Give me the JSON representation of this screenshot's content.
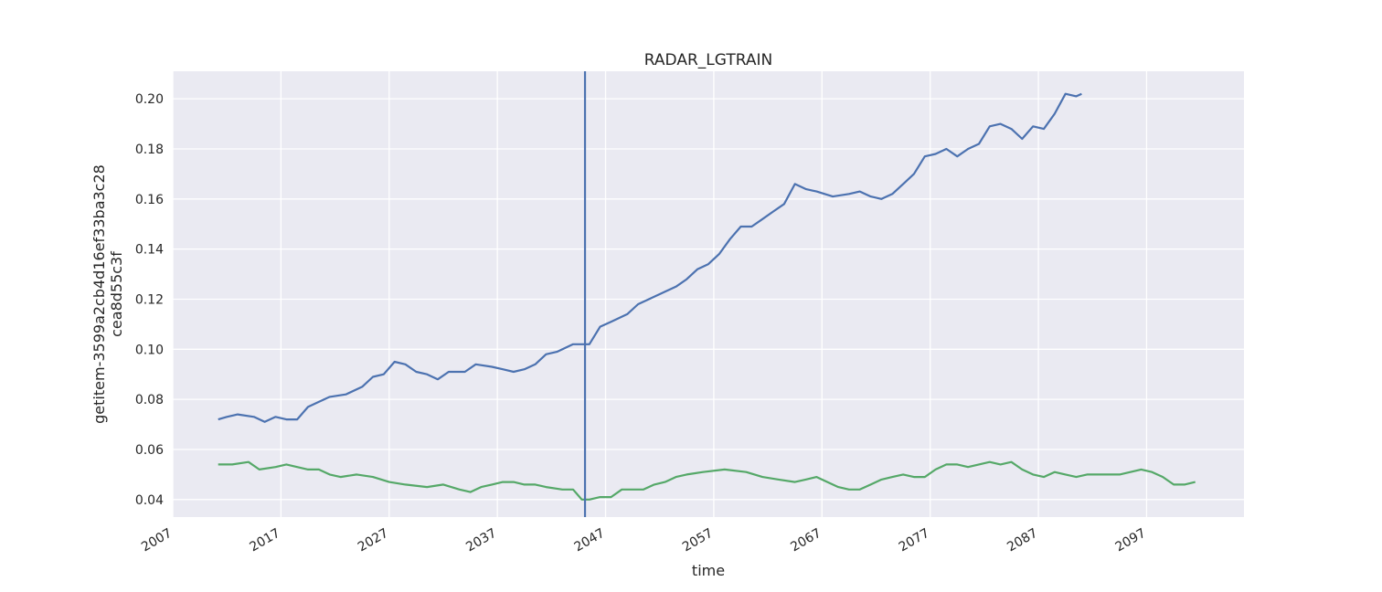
{
  "chart_data": {
    "type": "line",
    "title": "RADAR_LGTRAIN",
    "xlabel": "time",
    "ylabel_lines": [
      "getitem-3599a2cb4d16ef33ba3c28",
      "cea8d55c3f"
    ],
    "xlim": [
      2007,
      2106
    ],
    "ylim": [
      0.033,
      0.211
    ],
    "x_ticks": [
      2007,
      2017,
      2027,
      2037,
      2047,
      2057,
      2067,
      2077,
      2087,
      2097
    ],
    "y_ticks": [
      0.04,
      0.06,
      0.08,
      0.1,
      0.12,
      0.14,
      0.16,
      0.18,
      0.2
    ],
    "y_tick_labels": [
      "0.04",
      "0.06",
      "0.08",
      "0.10",
      "0.12",
      "0.14",
      "0.16",
      "0.18",
      "0.20"
    ],
    "grid": true,
    "vertical_line_x": 2045.1,
    "colors": {
      "blue": "#4c72b0",
      "green": "#55a868",
      "vline": "#4c72b0",
      "plot_bg": "#eaeaf2",
      "grid": "#ffffff"
    },
    "series": [
      {
        "color": "#4c72b0",
        "x": [
          2011.2,
          2012.0,
          2013.0,
          2014.5,
          2015.5,
          2016.5,
          2017.5,
          2018.5,
          2019.5,
          2020.5,
          2021.5,
          2023.0,
          2024.5,
          2025.5,
          2026.5,
          2027.5,
          2028.5,
          2029.5,
          2030.5,
          2031.5,
          2032.5,
          2034.0,
          2035.0,
          2036.5,
          2037.5,
          2038.5,
          2039.5,
          2040.5,
          2041.5,
          2042.5,
          2044.0,
          2045.5,
          2046.5,
          2047.5,
          2049.0,
          2050.0,
          2051.0,
          2052.5,
          2053.5,
          2054.5,
          2055.5,
          2056.5,
          2057.5,
          2058.5,
          2059.5,
          2060.5,
          2061.5,
          2062.5,
          2063.5,
          2064.5,
          2065.5,
          2066.5,
          2068.0,
          2069.5,
          2070.5,
          2071.5,
          2072.5,
          2073.5,
          2074.5,
          2075.5,
          2076.5,
          2077.5,
          2078.5,
          2079.5,
          2080.5,
          2081.5,
          2082.5,
          2083.5,
          2084.5,
          2085.5,
          2086.5,
          2087.5,
          2088.5,
          2089.5,
          2090.5,
          2091.0
        ],
        "y": [
          0.072,
          0.073,
          0.074,
          0.073,
          0.071,
          0.073,
          0.072,
          0.072,
          0.077,
          0.079,
          0.081,
          0.082,
          0.085,
          0.089,
          0.09,
          0.095,
          0.094,
          0.091,
          0.09,
          0.088,
          0.091,
          0.091,
          0.094,
          0.093,
          0.092,
          0.091,
          0.092,
          0.094,
          0.098,
          0.099,
          0.102,
          0.102,
          0.109,
          0.111,
          0.114,
          0.118,
          0.12,
          0.123,
          0.125,
          0.128,
          0.132,
          0.134,
          0.138,
          0.144,
          0.149,
          0.149,
          0.152,
          0.155,
          0.158,
          0.166,
          0.164,
          0.163,
          0.161,
          0.162,
          0.163,
          0.161,
          0.16,
          0.162,
          0.166,
          0.17,
          0.177,
          0.178,
          0.18,
          0.177,
          0.18,
          0.182,
          0.189,
          0.19,
          0.188,
          0.184,
          0.189,
          0.188,
          0.194,
          0.202,
          0.201,
          0.202
        ]
      },
      {
        "color": "#55a868",
        "x": [
          2011.2,
          2012.5,
          2014.0,
          2015.0,
          2016.5,
          2017.5,
          2018.5,
          2019.5,
          2020.5,
          2021.5,
          2022.5,
          2024.0,
          2025.5,
          2027.0,
          2028.5,
          2030.5,
          2032.0,
          2033.5,
          2034.5,
          2035.5,
          2036.5,
          2037.5,
          2038.5,
          2039.5,
          2040.5,
          2041.5,
          2043.0,
          2044.0,
          2044.8,
          2045.5,
          2046.5,
          2047.5,
          2048.5,
          2049.5,
          2050.5,
          2051.5,
          2052.5,
          2053.5,
          2054.5,
          2056.0,
          2058.0,
          2060.0,
          2061.5,
          2063.0,
          2064.5,
          2065.5,
          2066.5,
          2067.5,
          2068.5,
          2069.5,
          2070.5,
          2071.5,
          2072.5,
          2073.5,
          2074.5,
          2075.5,
          2076.5,
          2077.5,
          2078.5,
          2079.5,
          2080.5,
          2081.5,
          2082.5,
          2083.5,
          2084.5,
          2085.5,
          2086.5,
          2087.5,
          2088.5,
          2089.5,
          2090.5,
          2091.5,
          2092.5,
          2093.5,
          2094.5,
          2095.5,
          2096.5,
          2097.5,
          2098.5,
          2099.5,
          2100.5,
          2101.5
        ],
        "y": [
          0.054,
          0.054,
          0.055,
          0.052,
          0.053,
          0.054,
          0.053,
          0.052,
          0.052,
          0.05,
          0.049,
          0.05,
          0.049,
          0.047,
          0.046,
          0.045,
          0.046,
          0.044,
          0.043,
          0.045,
          0.046,
          0.047,
          0.047,
          0.046,
          0.046,
          0.045,
          0.044,
          0.044,
          0.04,
          0.04,
          0.041,
          0.041,
          0.044,
          0.044,
          0.044,
          0.046,
          0.047,
          0.049,
          0.05,
          0.051,
          0.052,
          0.051,
          0.049,
          0.048,
          0.047,
          0.048,
          0.049,
          0.047,
          0.045,
          0.044,
          0.044,
          0.046,
          0.048,
          0.049,
          0.05,
          0.049,
          0.049,
          0.052,
          0.054,
          0.054,
          0.053,
          0.054,
          0.055,
          0.054,
          0.055,
          0.052,
          0.05,
          0.049,
          0.051,
          0.05,
          0.049,
          0.05,
          0.05,
          0.05,
          0.05,
          0.051,
          0.052,
          0.051,
          0.049,
          0.046,
          0.046,
          0.047
        ]
      }
    ]
  }
}
